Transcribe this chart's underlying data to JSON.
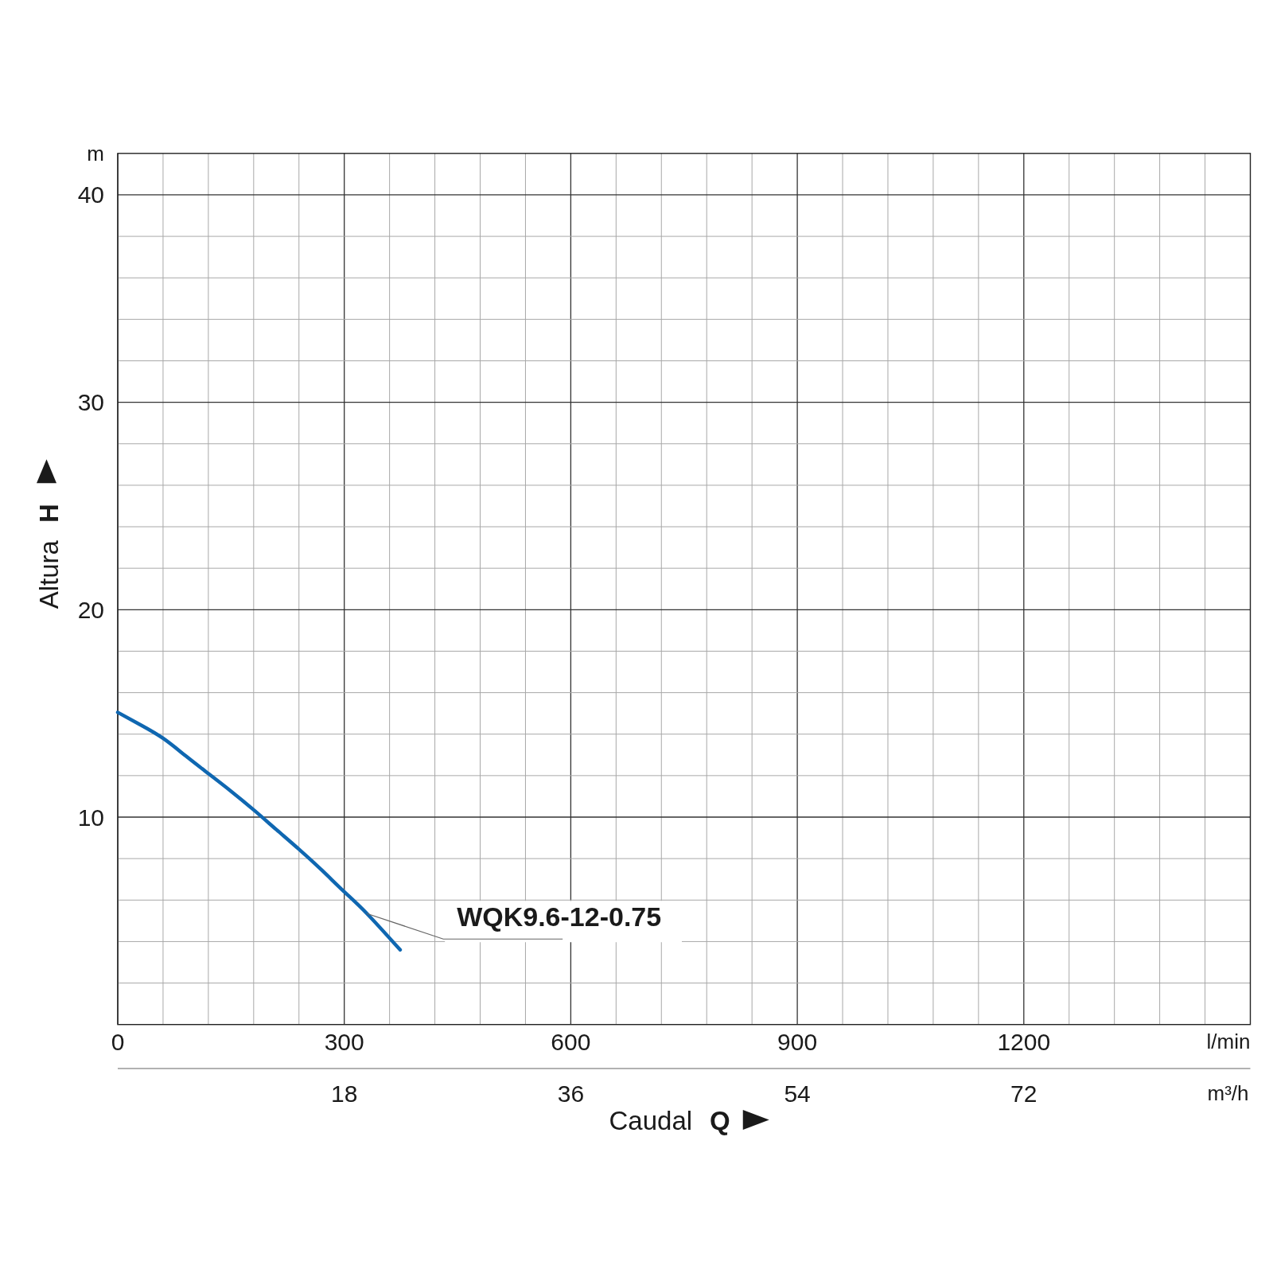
{
  "chart_data": {
    "type": "line",
    "xlabel": "Caudal Q",
    "ylabel": "Altura H",
    "annotations": [
      "m",
      "l/min",
      "m³/h"
    ],
    "xlim": [
      0,
      1500
    ],
    "xticks": [
      0,
      {
        "value": 60,
        "label": null
      },
      {
        "value": 120,
        "label": null
      },
      {
        "value": 180,
        "label": null
      },
      {
        "value": 240,
        "label": null
      },
      300,
      {
        "value": 360,
        "label": null
      },
      {
        "value": 420,
        "label": null
      },
      {
        "value": 480,
        "label": null
      },
      {
        "value": 540,
        "label": null
      },
      600,
      {
        "value": 660,
        "label": null
      },
      {
        "value": 720,
        "label": null
      },
      {
        "value": 780,
        "label": null
      },
      {
        "value": 840,
        "label": null
      },
      900,
      {
        "value": 960,
        "label": null
      },
      {
        "value": 1020,
        "label": null
      },
      {
        "value": 1080,
        "label": null
      },
      {
        "value": 1140,
        "label": null
      },
      1200,
      {
        "value": 1260,
        "label": null
      },
      {
        "value": 1320,
        "label": null
      },
      {
        "value": 1380,
        "label": null
      },
      {
        "value": 1440,
        "label": null
      }
    ],
    "x2lim": [
      0,
      90
    ],
    "x2ticks": [
      18,
      36,
      54,
      72
    ],
    "ylim": [
      0,
      42
    ],
    "yticks": [
      {
        "value": 2,
        "label": null
      },
      {
        "value": 4,
        "label": null
      },
      {
        "value": 6,
        "label": null
      },
      {
        "value": 8,
        "label": null
      },
      10,
      {
        "value": 12,
        "label": null
      },
      {
        "value": 14,
        "label": null
      },
      {
        "value": 16,
        "label": null
      },
      {
        "value": 18,
        "label": null
      },
      20,
      {
        "value": 22,
        "label": null
      },
      {
        "value": 24,
        "label": null
      },
      {
        "value": 26,
        "label": null
      },
      {
        "value": 28,
        "label": null
      },
      30,
      {
        "value": 32,
        "label": null
      },
      {
        "value": 34,
        "label": null
      },
      {
        "value": 36,
        "label": null
      },
      {
        "value": 38,
        "label": null
      },
      40
    ],
    "grid": true,
    "x": [
      0,
      30,
      60,
      90,
      120,
      150,
      180,
      210,
      240,
      270,
      300,
      330,
      374
    ],
    "series": [
      {
        "name": "WQK9.6-12-0.75",
        "color": "#0f67b1",
        "values": [
          15.05,
          14.45,
          13.8,
          12.95,
          12.1,
          11.25,
          10.35,
          9.4,
          8.45,
          7.45,
          6.4,
          5.35,
          3.6
        ]
      }
    ]
  }
}
